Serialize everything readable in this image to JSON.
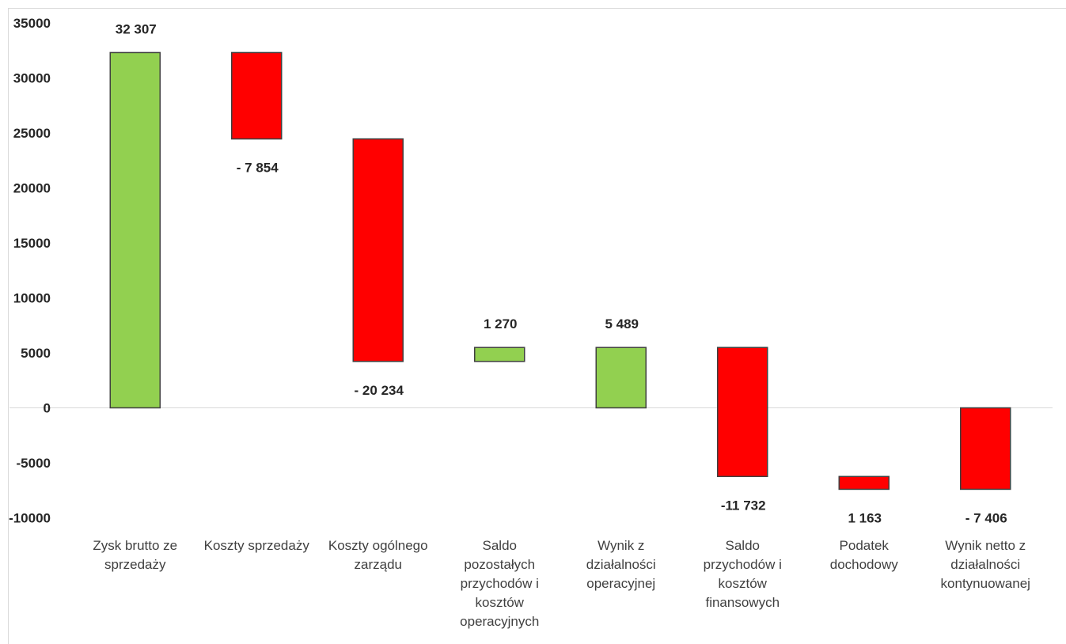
{
  "chart_data": {
    "type": "bar",
    "subtype": "waterfall",
    "ylim": [
      -10000,
      35000
    ],
    "ytick_step": 5000,
    "grid": false,
    "legend": "none",
    "colors": {
      "positive": "#92D050",
      "negative": "#FF0000",
      "outline": "#404040"
    },
    "yticks": [
      "35000",
      "30000",
      "25000",
      "20000",
      "15000",
      "10000",
      "5000",
      "0",
      "-5000",
      "-10000"
    ],
    "bars": [
      {
        "category": "Zysk brutto ze sprzedaży",
        "lines": [
          "Zysk brutto ze",
          "sprzedaży"
        ],
        "start": 0,
        "end": 32307,
        "label": "32 307",
        "label_pos": "above",
        "color": "positive"
      },
      {
        "category": "Koszty sprzedaży",
        "lines": [
          "Koszty sprzedaży"
        ],
        "start": 32307,
        "end": 24453,
        "label": "- 7 854",
        "label_pos": "below",
        "color": "negative"
      },
      {
        "category": "Koszty ogólnego zarządu",
        "lines": [
          "Koszty ogólnego",
          "zarządu"
        ],
        "start": 24453,
        "end": 4219,
        "label": "- 20 234",
        "label_pos": "below",
        "color": "negative"
      },
      {
        "category": "Saldo pozostałych przychodów i kosztów operacyjnych",
        "lines": [
          "Saldo",
          "pozostałych",
          "przychodów i",
          "kosztów",
          "operacyjnych"
        ],
        "start": 4219,
        "end": 5489,
        "label": "1 270",
        "label_pos": "above",
        "color": "positive"
      },
      {
        "category": "Wynik z działalności operacyjnej",
        "lines": [
          "Wynik z",
          "działalności",
          "operacyjnej"
        ],
        "start": 0,
        "end": 5489,
        "label": "5 489",
        "label_pos": "above",
        "color": "positive"
      },
      {
        "category": "Saldo przychodów i kosztów finansowych",
        "lines": [
          "Saldo",
          "przychodów i",
          "kosztów",
          "finansowych"
        ],
        "start": 5489,
        "end": -6243,
        "label": "-11 732",
        "label_pos": "below",
        "color": "negative"
      },
      {
        "category": "Podatek dochodowy",
        "lines": [
          "Podatek",
          "dochodowy"
        ],
        "start": -6243,
        "end": -7406,
        "label": "1 163",
        "label_pos": "below",
        "color": "negative"
      },
      {
        "category": "Wynik netto z działalności kontynuowanej",
        "lines": [
          "Wynik netto z",
          "działalności",
          "kontynuowanej"
        ],
        "start": 0,
        "end": -7406,
        "label": "- 7 406",
        "label_pos": "below",
        "color": "negative"
      }
    ]
  }
}
